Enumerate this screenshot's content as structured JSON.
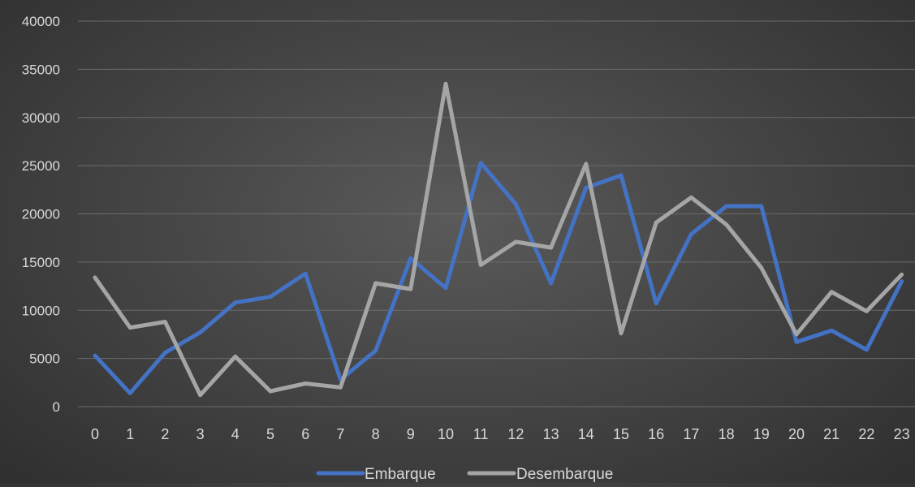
{
  "chart_data": {
    "type": "line",
    "title": "",
    "xlabel": "",
    "ylabel": "",
    "categories": [
      "0",
      "1",
      "2",
      "3",
      "4",
      "5",
      "6",
      "7",
      "8",
      "9",
      "10",
      "11",
      "12",
      "13",
      "14",
      "15",
      "16",
      "17",
      "18",
      "19",
      "20",
      "21",
      "22",
      "23"
    ],
    "ylim": [
      0,
      40000
    ],
    "yticks": [
      0,
      5000,
      10000,
      15000,
      20000,
      25000,
      30000,
      35000,
      40000
    ],
    "grid": true,
    "legend_position": "bottom",
    "series": [
      {
        "name": "Embarque",
        "color": "#4472C4",
        "values": [
          5300,
          1400,
          5600,
          7700,
          10800,
          11400,
          13800,
          2800,
          5800,
          15400,
          12300,
          25300,
          21000,
          12800,
          22700,
          24000,
          10700,
          17900,
          20800,
          20800,
          6700,
          7900,
          5900,
          13000
        ]
      },
      {
        "name": "Desembarque",
        "color": "#A5A5A5",
        "values": [
          13400,
          8200,
          8800,
          1200,
          5200,
          1600,
          2400,
          2000,
          12800,
          12200,
          33500,
          14700,
          17100,
          16500,
          25200,
          7600,
          19100,
          21700,
          18900,
          14400,
          7500,
          11900,
          9900,
          13700
        ]
      }
    ]
  },
  "colors": {
    "axis_text": "#d9d9d9",
    "gridline": "#6b6b6b"
  }
}
